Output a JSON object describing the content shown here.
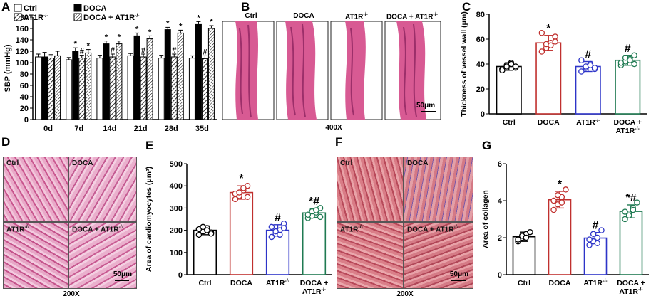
{
  "panel_letters": {
    "A": "A",
    "B": "B",
    "C": "C",
    "D": "D",
    "E": "E",
    "F": "F",
    "G": "G"
  },
  "groups_plain": [
    "Ctrl",
    "DOCA",
    "AT1R",
    "DOCA + AT1R"
  ],
  "ko_superscript": "-/-",
  "legend_A": [
    "Ctrl",
    "AT1R",
    "DOCA",
    "DOCA + AT1R"
  ],
  "colors": {
    "ctrl": "#000000",
    "doca": "#c0302e",
    "at1r": "#2d34c8",
    "doca_at1r": "#1f7a52",
    "tissue": "#d85a93"
  },
  "B": {
    "group_labels": [
      "Ctrl",
      "DOCA",
      "AT1R",
      "DOCA + AT1R"
    ],
    "scale": "50μm",
    "magnification": "400X"
  },
  "D": {
    "tile_labels": [
      "Ctrl",
      "DOCA",
      "AT1R",
      "DOCA + AT1R"
    ],
    "scale": "50μm",
    "magnification": "200X"
  },
  "F": {
    "tile_labels": [
      "Ctrl",
      "DOCA",
      "AT1R",
      "DOCA + AT1R"
    ],
    "scale": "50μm",
    "magnification": "200X"
  },
  "chart_data": [
    {
      "panel": "A",
      "type": "bar",
      "ylabel": "SBP (mmHg)",
      "ylim": [
        0,
        180
      ],
      "yticks": [
        0,
        20,
        40,
        60,
        80,
        100,
        120,
        140,
        160,
        180
      ],
      "categories": [
        "0d",
        "7d",
        "14d",
        "21d",
        "28d",
        "35d"
      ],
      "series": [
        {
          "name": "Ctrl",
          "values": [
            110,
            105,
            108,
            112,
            108,
            108
          ],
          "err": [
            5,
            4,
            5,
            4,
            5,
            4
          ],
          "marks": [
            "",
            "",
            "",
            "",
            "",
            ""
          ]
        },
        {
          "name": "AT1R",
          "values": [
            108,
            108,
            110,
            110,
            110,
            107
          ],
          "err": [
            6,
            5,
            5,
            5,
            5,
            5
          ],
          "marks": [
            "",
            "#",
            "#",
            "#",
            "#",
            "#"
          ]
        },
        {
          "name": "DOCA",
          "values": [
            110,
            120,
            133,
            147,
            158,
            167
          ],
          "err": [
            8,
            6,
            5,
            5,
            4,
            5
          ],
          "marks": [
            "",
            "*",
            "*",
            "*",
            "*",
            "*"
          ]
        },
        {
          "name": "DOCA + AT1R",
          "values": [
            112,
            117,
            133,
            142,
            152,
            160
          ],
          "err": [
            8,
            6,
            5,
            5,
            5,
            5
          ],
          "marks": [
            "",
            "*",
            "*",
            "*",
            "*",
            "*"
          ]
        }
      ]
    },
    {
      "panel": "C",
      "type": "bar",
      "ylabel": "Thickness of vessel wall (μm)",
      "ylim": [
        0,
        80
      ],
      "yticks": [
        0,
        20,
        40,
        60,
        80
      ],
      "categories": [
        "Ctrl",
        "DOCA",
        "AT1R",
        "DOCA + AT1R"
      ],
      "values": [
        38,
        57,
        38,
        43
      ],
      "err": [
        3,
        6,
        4,
        4
      ],
      "marks": [
        "",
        "*",
        "#",
        "#"
      ],
      "points": [
        [
          36,
          39,
          41,
          37,
          35,
          38,
          40,
          38
        ],
        [
          50,
          53,
          57,
          62,
          65,
          56,
          55,
          58
        ],
        [
          34,
          37,
          40,
          36,
          43,
          38,
          39,
          37
        ],
        [
          39,
          42,
          44,
          47,
          41,
          45,
          43,
          40
        ]
      ]
    },
    {
      "panel": "E",
      "type": "bar",
      "ylabel": "Area of cardiomyocytes (μm²)",
      "ylim": [
        0,
        500
      ],
      "yticks": [
        0,
        100,
        200,
        300,
        400,
        500
      ],
      "categories": [
        "Ctrl",
        "DOCA",
        "AT1R",
        "DOCA + AT1R"
      ],
      "values": [
        200,
        370,
        200,
        278
      ],
      "err": [
        20,
        30,
        25,
        20
      ],
      "marks": [
        "",
        "*",
        "#",
        "*#"
      ],
      "points": [
        [
          180,
          195,
          210,
          190,
          205,
          215,
          200,
          185
        ],
        [
          340,
          355,
          380,
          400,
          365,
          370,
          390,
          350
        ],
        [
          170,
          185,
          200,
          230,
          215,
          195,
          180,
          210
        ],
        [
          255,
          265,
          280,
          300,
          270,
          285,
          290,
          260
        ]
      ]
    },
    {
      "panel": "G",
      "type": "bar",
      "ylabel": "Area of collagen",
      "ylim": [
        0,
        6
      ],
      "yticks": [
        0,
        2,
        4,
        6
      ],
      "categories": [
        "Ctrl",
        "DOCA",
        "AT1R",
        "DOCA + AT1R"
      ],
      "values": [
        2.05,
        4.05,
        1.98,
        3.42
      ],
      "err": [
        0.25,
        0.45,
        0.3,
        0.35
      ],
      "marks": [
        "",
        "*",
        "#",
        "*#"
      ],
      "points": [
        [
          1.8,
          2.0,
          2.2,
          2.3,
          1.9,
          2.1,
          2.0
        ],
        [
          3.5,
          3.8,
          4.2,
          4.6,
          4.0,
          4.3,
          3.9
        ],
        [
          1.6,
          1.8,
          2.0,
          2.4,
          1.9,
          2.2,
          1.7
        ],
        [
          3.0,
          3.3,
          3.6,
          3.9,
          3.4,
          3.2,
          3.5
        ]
      ]
    }
  ]
}
